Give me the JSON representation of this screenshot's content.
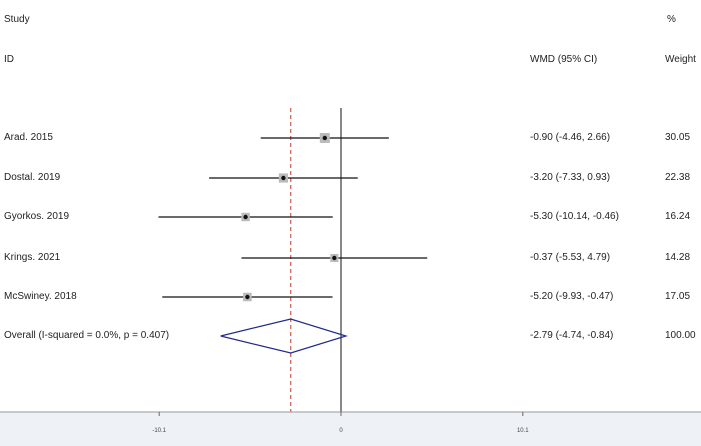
{
  "headers": {
    "study_line1": "Study",
    "study_line2": "ID",
    "ci_label": "WMD (95% CI)",
    "weight_line1": "%",
    "weight_line2": "Weight"
  },
  "chart_data": {
    "type": "forest",
    "xlim": [
      -18.5,
      20.6
    ],
    "x_ticks": [
      {
        "value": -10.1,
        "label": "-10.1"
      },
      {
        "value": 0,
        "label": "0"
      },
      {
        "value": 10.1,
        "label": "10.1"
      }
    ],
    "null_line": 0,
    "pooled_estimate": -2.79,
    "studies": [
      {
        "label": "Arad. 2015",
        "est": -0.9,
        "lo": -4.46,
        "hi": 2.66,
        "ci_text": "-0.90 (-4.46, 2.66)",
        "weight": "30.05",
        "weight_value": 30.05
      },
      {
        "label": "Dostal. 2019",
        "est": -3.2,
        "lo": -7.33,
        "hi": 0.93,
        "ci_text": "-3.20 (-7.33, 0.93)",
        "weight": "22.38",
        "weight_value": 22.38
      },
      {
        "label": "Gyorkos. 2019",
        "est": -5.3,
        "lo": -10.14,
        "hi": -0.46,
        "ci_text": "-5.30 (-10.14, -0.46)",
        "weight": "16.24",
        "weight_value": 16.24
      },
      {
        "label": "Krings. 2021",
        "est": -0.37,
        "lo": -5.53,
        "hi": 4.79,
        "ci_text": "-0.37 (-5.53, 4.79)",
        "weight": "14.28",
        "weight_value": 14.28
      },
      {
        "label": "McSwiney. 2018",
        "est": -5.2,
        "lo": -9.93,
        "hi": -0.47,
        "ci_text": "-5.20 (-9.93, -0.47)",
        "weight": "17.05",
        "weight_value": 17.05
      }
    ],
    "overall": {
      "label": "Overall  (I-squared = 0.0%, p = 0.407)",
      "est": -2.79,
      "lo": -4.74,
      "hi": -0.84,
      "ci_text": "-2.79 (-4.74, -0.84)",
      "weight": "100.00"
    },
    "colors": {
      "line": "#111111",
      "box": "#bbbbbb",
      "dot": "#111111",
      "diamond": "#1f2a8a",
      "pooled_line": "#c0392b",
      "axis_band": "#eef1f5"
    }
  }
}
